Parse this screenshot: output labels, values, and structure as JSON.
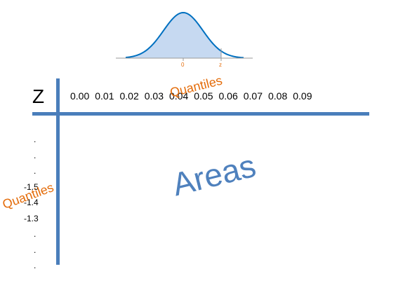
{
  "curve": {
    "mean_label": "0",
    "z_label": "z",
    "fill_color": "#c6d9f1",
    "line_color": "#0070c0"
  },
  "table": {
    "z_header": "Z",
    "column_headers": [
      "0.00",
      "0.01",
      "0.02",
      "0.03",
      "0.04",
      "0.05",
      "0.06",
      "0.07",
      "0.08",
      "0.09"
    ],
    "row_labels": [
      ".",
      ".",
      ".",
      "-1.5",
      "-1.4",
      "-1.3",
      ".",
      ".",
      "."
    ],
    "axis_color": "#4a7ebb"
  },
  "annotations": {
    "quantiles_top": "Quantiles",
    "quantiles_left": "Quantiles",
    "areas": "Areas",
    "quantile_color": "#e46c0a",
    "areas_color": "#4f81bd"
  }
}
